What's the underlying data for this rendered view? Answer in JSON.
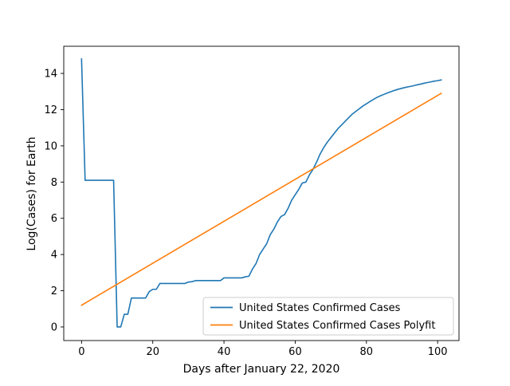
{
  "chart_data": {
    "type": "line",
    "title": "",
    "xlabel": "Days after January 22, 2020",
    "ylabel": "Log(Cases) for Earth",
    "xlim": [
      -5,
      106
    ],
    "ylim": [
      -0.75,
      15.5
    ],
    "xticks": [
      0,
      20,
      40,
      60,
      80,
      100
    ],
    "yticks": [
      0,
      2,
      4,
      6,
      8,
      10,
      12,
      14
    ],
    "grid": false,
    "legend_position": "lower-right",
    "series": [
      {
        "name": "United States Confirmed Cases",
        "color": "#1f77b4",
        "points": [
          [
            0,
            14.8
          ],
          [
            1,
            8.1
          ],
          [
            2,
            8.1
          ],
          [
            3,
            8.1
          ],
          [
            4,
            8.1
          ],
          [
            5,
            8.1
          ],
          [
            6,
            8.1
          ],
          [
            7,
            8.1
          ],
          [
            8,
            8.1
          ],
          [
            9,
            8.1
          ],
          [
            10,
            0.0
          ],
          [
            11,
            0.0
          ],
          [
            12,
            0.7
          ],
          [
            13,
            0.7
          ],
          [
            14,
            1.6
          ],
          [
            15,
            1.6
          ],
          [
            16,
            1.6
          ],
          [
            17,
            1.6
          ],
          [
            18,
            1.6
          ],
          [
            19,
            1.95
          ],
          [
            20,
            2.08
          ],
          [
            21,
            2.08
          ],
          [
            22,
            2.4
          ],
          [
            23,
            2.4
          ],
          [
            24,
            2.4
          ],
          [
            25,
            2.4
          ],
          [
            26,
            2.4
          ],
          [
            27,
            2.4
          ],
          [
            28,
            2.4
          ],
          [
            29,
            2.4
          ],
          [
            30,
            2.48
          ],
          [
            31,
            2.5
          ],
          [
            32,
            2.56
          ],
          [
            33,
            2.56
          ],
          [
            34,
            2.56
          ],
          [
            35,
            2.56
          ],
          [
            36,
            2.56
          ],
          [
            37,
            2.56
          ],
          [
            38,
            2.56
          ],
          [
            39,
            2.56
          ],
          [
            40,
            2.71
          ],
          [
            41,
            2.71
          ],
          [
            42,
            2.71
          ],
          [
            43,
            2.71
          ],
          [
            44,
            2.71
          ],
          [
            45,
            2.71
          ],
          [
            46,
            2.77
          ],
          [
            47,
            2.8
          ],
          [
            48,
            3.2
          ],
          [
            49,
            3.5
          ],
          [
            50,
            4.0
          ],
          [
            51,
            4.3
          ],
          [
            52,
            4.6
          ],
          [
            53,
            5.1
          ],
          [
            54,
            5.4
          ],
          [
            55,
            5.8
          ],
          [
            56,
            6.1
          ],
          [
            57,
            6.2
          ],
          [
            58,
            6.55
          ],
          [
            59,
            7.0
          ],
          [
            60,
            7.3
          ],
          [
            61,
            7.6
          ],
          [
            62,
            7.95
          ],
          [
            63,
            8.0
          ],
          [
            64,
            8.4
          ],
          [
            65,
            8.7
          ],
          [
            66,
            9.1
          ],
          [
            67,
            9.55
          ],
          [
            68,
            9.9
          ],
          [
            69,
            10.2
          ],
          [
            70,
            10.45
          ],
          [
            71,
            10.7
          ],
          [
            72,
            10.95
          ],
          [
            73,
            11.15
          ],
          [
            74,
            11.35
          ],
          [
            75,
            11.55
          ],
          [
            76,
            11.75
          ],
          [
            77,
            11.9
          ],
          [
            78,
            12.05
          ],
          [
            79,
            12.2
          ],
          [
            80,
            12.32
          ],
          [
            81,
            12.45
          ],
          [
            82,
            12.57
          ],
          [
            83,
            12.68
          ],
          [
            84,
            12.77
          ],
          [
            85,
            12.85
          ],
          [
            86,
            12.93
          ],
          [
            87,
            13.0
          ],
          [
            88,
            13.07
          ],
          [
            89,
            13.13
          ],
          [
            90,
            13.18
          ],
          [
            91,
            13.23
          ],
          [
            92,
            13.27
          ],
          [
            93,
            13.31
          ],
          [
            94,
            13.36
          ],
          [
            95,
            13.4
          ],
          [
            96,
            13.45
          ],
          [
            97,
            13.49
          ],
          [
            98,
            13.53
          ],
          [
            99,
            13.57
          ],
          [
            100,
            13.6
          ],
          [
            101,
            13.64
          ]
        ]
      },
      {
        "name": "United States Confirmed Cases Polyfit",
        "color": "#ff7f0e",
        "points": [
          [
            0,
            1.2
          ],
          [
            101,
            12.9
          ]
        ]
      }
    ]
  }
}
